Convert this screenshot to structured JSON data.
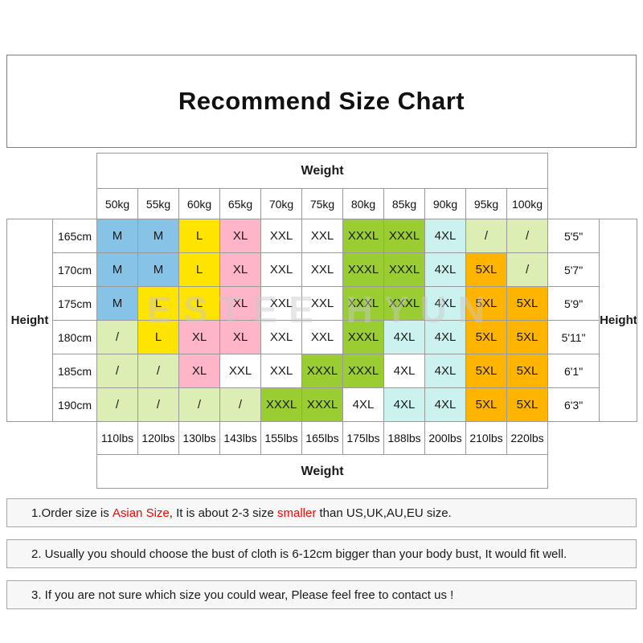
{
  "title": "Recommend Size Chart",
  "watermark": "ESTEE HYUN",
  "palette": {
    "blue": "#87C3E6",
    "yellow": "#FFE400",
    "pink": "#FFB5C8",
    "white": "#FFFFFF",
    "green": "#9ACD32",
    "cyan": "#CBF2EE",
    "orange": "#FFB400",
    "pale": "#DDEEB5"
  },
  "table": {
    "top_weight_label": "Weight",
    "bottom_weight_label": "Weight",
    "left_height_label": "Height",
    "right_height_label": "Height",
    "kg_headers": [
      "50kg",
      "55kg",
      "60kg",
      "65kg",
      "70kg",
      "75kg",
      "80kg",
      "85kg",
      "90kg",
      "95kg",
      "100kg"
    ],
    "lbs_footers": [
      "110lbs",
      "120lbs",
      "130lbs",
      "143lbs",
      "155lbs",
      "165lbs",
      "175lbs",
      "188lbs",
      "200lbs",
      "210lbs",
      "220lbs"
    ],
    "rows": [
      {
        "cm": "165cm",
        "ft": "5'5\"",
        "cells": [
          {
            "v": "M",
            "c": "blue"
          },
          {
            "v": "M",
            "c": "blue"
          },
          {
            "v": "L",
            "c": "yellow"
          },
          {
            "v": "XL",
            "c": "pink"
          },
          {
            "v": "XXL",
            "c": "white"
          },
          {
            "v": "XXL",
            "c": "white"
          },
          {
            "v": "XXXL",
            "c": "green"
          },
          {
            "v": "XXXL",
            "c": "green"
          },
          {
            "v": "4XL",
            "c": "cyan"
          },
          {
            "v": "/",
            "c": "pale"
          },
          {
            "v": "/",
            "c": "pale"
          }
        ]
      },
      {
        "cm": "170cm",
        "ft": "5'7\"",
        "cells": [
          {
            "v": "M",
            "c": "blue"
          },
          {
            "v": "M",
            "c": "blue"
          },
          {
            "v": "L",
            "c": "yellow"
          },
          {
            "v": "XL",
            "c": "pink"
          },
          {
            "v": "XXL",
            "c": "white"
          },
          {
            "v": "XXL",
            "c": "white"
          },
          {
            "v": "XXXL",
            "c": "green"
          },
          {
            "v": "XXXL",
            "c": "green"
          },
          {
            "v": "4XL",
            "c": "cyan"
          },
          {
            "v": "5XL",
            "c": "orange"
          },
          {
            "v": "/",
            "c": "pale"
          }
        ]
      },
      {
        "cm": "175cm",
        "ft": "5'9\"",
        "cells": [
          {
            "v": "M",
            "c": "blue"
          },
          {
            "v": "L",
            "c": "yellow"
          },
          {
            "v": "L",
            "c": "yellow"
          },
          {
            "v": "XL",
            "c": "pink"
          },
          {
            "v": "XXL",
            "c": "white"
          },
          {
            "v": "XXL",
            "c": "white"
          },
          {
            "v": "XXXL",
            "c": "green"
          },
          {
            "v": "XXXL",
            "c": "green"
          },
          {
            "v": "4XL",
            "c": "cyan"
          },
          {
            "v": "5XL",
            "c": "orange"
          },
          {
            "v": "5XL",
            "c": "orange"
          }
        ]
      },
      {
        "cm": "180cm",
        "ft": "5'11\"",
        "cells": [
          {
            "v": "/",
            "c": "pale"
          },
          {
            "v": "L",
            "c": "yellow"
          },
          {
            "v": "XL",
            "c": "pink"
          },
          {
            "v": "XL",
            "c": "pink"
          },
          {
            "v": "XXL",
            "c": "white"
          },
          {
            "v": "XXL",
            "c": "white"
          },
          {
            "v": "XXXL",
            "c": "green"
          },
          {
            "v": "4XL",
            "c": "cyan"
          },
          {
            "v": "4XL",
            "c": "cyan"
          },
          {
            "v": "5XL",
            "c": "orange"
          },
          {
            "v": "5XL",
            "c": "orange"
          }
        ]
      },
      {
        "cm": "185cm",
        "ft": "6'1\"",
        "cells": [
          {
            "v": "/",
            "c": "pale"
          },
          {
            "v": "/",
            "c": "pale"
          },
          {
            "v": "XL",
            "c": "pink"
          },
          {
            "v": "XXL",
            "c": "white"
          },
          {
            "v": "XXL",
            "c": "white"
          },
          {
            "v": "XXXL",
            "c": "green"
          },
          {
            "v": "XXXL",
            "c": "green"
          },
          {
            "v": "4XL",
            "c": "white"
          },
          {
            "v": "4XL",
            "c": "cyan"
          },
          {
            "v": "5XL",
            "c": "orange"
          },
          {
            "v": "5XL",
            "c": "orange"
          }
        ]
      },
      {
        "cm": "190cm",
        "ft": "6'3\"",
        "cells": [
          {
            "v": "/",
            "c": "pale"
          },
          {
            "v": "/",
            "c": "pale"
          },
          {
            "v": "/",
            "c": "pale"
          },
          {
            "v": "/",
            "c": "pale"
          },
          {
            "v": "XXXL",
            "c": "green"
          },
          {
            "v": "XXXL",
            "c": "green"
          },
          {
            "v": "4XL",
            "c": "white"
          },
          {
            "v": "4XL",
            "c": "cyan"
          },
          {
            "v": "4XL",
            "c": "cyan"
          },
          {
            "v": "5XL",
            "c": "orange"
          },
          {
            "v": "5XL",
            "c": "orange"
          }
        ]
      }
    ]
  },
  "notes": [
    {
      "segments": [
        {
          "text": "1.Order size is ",
          "color": "black"
        },
        {
          "text": "Asian Size",
          "color": "red"
        },
        {
          "text": ", It is about 2-3 size ",
          "color": "black"
        },
        {
          "text": "smaller",
          "color": "red"
        },
        {
          "text": " than US,UK,AU,EU size.",
          "color": "black"
        }
      ]
    },
    {
      "segments": [
        {
          "text": "2. Usually you should choose the bust of cloth is 6-12cm bigger than your body bust, It would fit well.",
          "color": "black"
        }
      ]
    },
    {
      "segments": [
        {
          "text": "3. If you are not sure which size you could wear, Please feel free to contact us !",
          "color": "black"
        }
      ]
    }
  ]
}
